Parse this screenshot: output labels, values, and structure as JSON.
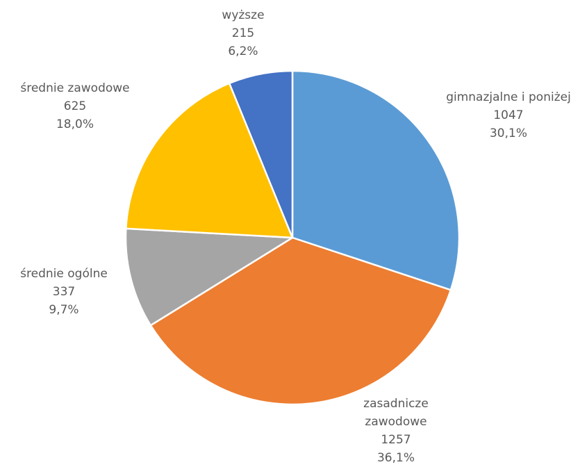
{
  "chart_data": {
    "type": "pie",
    "title": "",
    "start_angle_deg": 0,
    "direction": "clockwise",
    "legend": "none",
    "categories": [
      "gimnazjalne i poniżej",
      "zasadnicze zawodowe",
      "średnie ogólne",
      "średnie zawodowe",
      "wyższe"
    ],
    "values": [
      1047,
      1257,
      337,
      625,
      215
    ],
    "percent_labels": [
      "30,1%",
      "36,1%",
      "9,7%",
      "18,0%",
      "6,2%"
    ],
    "colors": [
      "#5b9bd5",
      "#ed7d31",
      "#a5a5a5",
      "#ffc000",
      "#4472c4"
    ],
    "slices": [
      {
        "category": "gimnazjalne i poniżej",
        "label_lines": [
          "gimnazjalne i poniżej"
        ],
        "value_text": "1047",
        "percent_text": "30,1%"
      },
      {
        "category": "zasadnicze zawodowe",
        "label_lines": [
          "zasadnicze",
          "zawodowe"
        ],
        "value_text": "1257",
        "percent_text": "36,1%"
      },
      {
        "category": "średnie ogólne",
        "label_lines": [
          "średnie ogólne"
        ],
        "value_text": "337",
        "percent_text": "9,7%"
      },
      {
        "category": "średnie zawodowe",
        "label_lines": [
          "średnie zawodowe"
        ],
        "value_text": "625",
        "percent_text": "18,0%"
      },
      {
        "category": "wyższe",
        "label_lines": [
          "wyższe"
        ],
        "value_text": "215",
        "percent_text": "6,2%"
      }
    ]
  }
}
